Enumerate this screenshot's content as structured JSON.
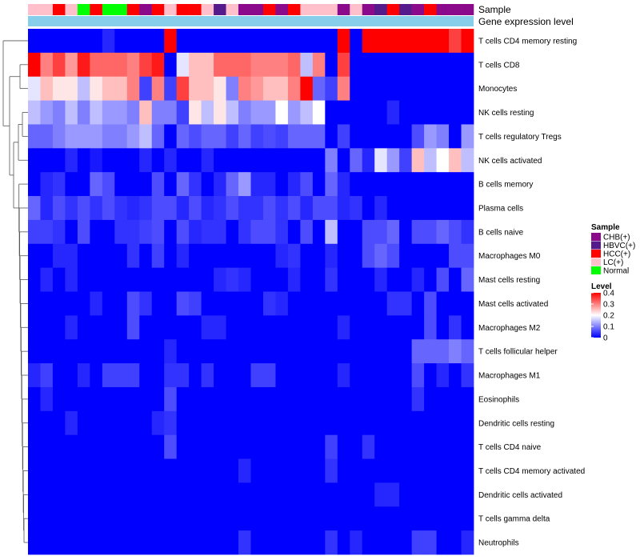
{
  "chart_data": {
    "type": "heatmap",
    "annotation_labels": [
      "Sample",
      "Gene expression level"
    ],
    "sample_groups": [
      "CHB(+)",
      "HBVC(+)",
      "HCC(+)",
      "LC(+)",
      "Normal"
    ],
    "sample_colors": {
      "CHB(+)": "#8B0A8B",
      "HBVC(+)": "#551A8B",
      "HCC(+)": "#FF0000",
      "LC(+)": "#FFC0CB",
      "Normal": "#00FF00"
    },
    "columns": [
      "LC(+)",
      "LC(+)",
      "HCC(+)",
      "LC(+)",
      "Normal",
      "HCC(+)",
      "Normal",
      "Normal",
      "HCC(+)",
      "CHB(+)",
      "HCC(+)",
      "LC(+)",
      "HCC(+)",
      "HCC(+)",
      "LC(+)",
      "HBVC(+)",
      "LC(+)",
      "CHB(+)",
      "CHB(+)",
      "HCC(+)",
      "CHB(+)",
      "HCC(+)",
      "LC(+)",
      "LC(+)",
      "LC(+)",
      "CHB(+)",
      "LC(+)",
      "CHB(+)",
      "HBVC(+)",
      "HCC(+)",
      "HBVC(+)",
      "CHB(+)",
      "HCC(+)",
      "CHB(+)",
      "CHB(+)",
      "CHB(+)"
    ],
    "gene_expression_color": "#87CEEB",
    "rows": [
      "T cells CD4 memory resting",
      "T cells CD8",
      "Monocytes",
      "NK cells resting",
      "T cells regulatory  Tregs",
      "NK cells activated",
      "B cells memory",
      "Plasma cells",
      "B cells naive",
      "Macrophages M0",
      "Mast cells resting",
      "Mast cells activated",
      "Macrophages M2",
      "T cells follicular helper",
      "Macrophages M1",
      "Eosinophils",
      "Dendritic cells resting",
      "T cells CD4 naive",
      "T cells CD4 memory activated",
      "Dendritic cells activated",
      "T cells gamma delta",
      "Neutrophils"
    ],
    "values": [
      [
        0.0,
        0.0,
        0.0,
        0.0,
        0.0,
        0.0,
        0.03,
        0.0,
        0.0,
        0.0,
        0.0,
        0.4,
        0.0,
        0.0,
        0.0,
        0.0,
        0.0,
        0.0,
        0.0,
        0.0,
        0.0,
        0.0,
        0.0,
        0.0,
        0.0,
        0.4,
        0.0,
        0.4,
        0.4,
        0.4,
        0.4,
        0.4,
        0.4,
        0.4,
        0.35,
        0.4
      ],
      [
        0.4,
        0.3,
        0.35,
        0.28,
        0.38,
        0.32,
        0.32,
        0.32,
        0.3,
        0.35,
        0.38,
        0.0,
        0.18,
        0.25,
        0.25,
        0.32,
        0.32,
        0.32,
        0.3,
        0.3,
        0.3,
        0.32,
        0.15,
        0.3,
        0.0,
        0.35,
        0.0,
        0.0,
        0.0,
        0.0,
        0.0,
        0.0,
        0.0,
        0.0,
        0.0,
        0.0
      ],
      [
        0.18,
        0.25,
        0.22,
        0.22,
        0.15,
        0.22,
        0.25,
        0.25,
        0.3,
        0.05,
        0.3,
        0.05,
        0.35,
        0.25,
        0.25,
        0.22,
        0.1,
        0.3,
        0.28,
        0.25,
        0.25,
        0.3,
        0.4,
        0.08,
        0.05,
        0.3,
        0.0,
        0.0,
        0.0,
        0.0,
        0.0,
        0.0,
        0.0,
        0.0,
        0.0,
        0.0
      ],
      [
        0.15,
        0.12,
        0.1,
        0.15,
        0.1,
        0.15,
        0.12,
        0.12,
        0.1,
        0.25,
        0.1,
        0.1,
        0.05,
        0.22,
        0.15,
        0.22,
        0.15,
        0.1,
        0.12,
        0.12,
        0.2,
        0.12,
        0.15,
        0.2,
        0.0,
        0.0,
        0.0,
        0.0,
        0.0,
        0.03,
        0.0,
        0.0,
        0.0,
        0.0,
        0.0,
        0.0
      ],
      [
        0.08,
        0.08,
        0.1,
        0.12,
        0.12,
        0.12,
        0.1,
        0.1,
        0.12,
        0.15,
        0.08,
        0.0,
        0.08,
        0.06,
        0.08,
        0.08,
        0.05,
        0.08,
        0.05,
        0.06,
        0.05,
        0.08,
        0.08,
        0.08,
        0.0,
        0.05,
        0.0,
        0.0,
        0.0,
        0.0,
        0.0,
        0.06,
        0.12,
        0.1,
        0.0,
        0.12
      ],
      [
        0.0,
        0.0,
        0.0,
        0.03,
        0.0,
        0.02,
        0.0,
        0.0,
        0.0,
        0.03,
        0.0,
        0.03,
        0.0,
        0.0,
        0.03,
        0.0,
        0.0,
        0.0,
        0.0,
        0.0,
        0.0,
        0.0,
        0.0,
        0.0,
        0.1,
        0.0,
        0.08,
        0.03,
        0.18,
        0.12,
        0.05,
        0.25,
        0.15,
        0.2,
        0.25,
        0.15
      ],
      [
        0.0,
        0.03,
        0.04,
        0.0,
        0.0,
        0.08,
        0.06,
        0.0,
        0.0,
        0.0,
        0.06,
        0.0,
        0.08,
        0.04,
        0.0,
        0.03,
        0.08,
        0.12,
        0.03,
        0.03,
        0.0,
        0.03,
        0.06,
        0.0,
        0.08,
        0.03,
        0.0,
        0.0,
        0.0,
        0.0,
        0.0,
        0.0,
        0.0,
        0.0,
        0.0,
        0.0
      ],
      [
        0.08,
        0.03,
        0.06,
        0.04,
        0.06,
        0.04,
        0.06,
        0.04,
        0.03,
        0.04,
        0.06,
        0.06,
        0.03,
        0.06,
        0.03,
        0.04,
        0.06,
        0.04,
        0.04,
        0.06,
        0.04,
        0.06,
        0.03,
        0.06,
        0.06,
        0.03,
        0.04,
        0.0,
        0.03,
        0.0,
        0.0,
        0.0,
        0.0,
        0.0,
        0.0,
        0.0
      ],
      [
        0.05,
        0.05,
        0.04,
        0.0,
        0.06,
        0.0,
        0.0,
        0.04,
        0.04,
        0.05,
        0.06,
        0.0,
        0.06,
        0.03,
        0.04,
        0.04,
        0.0,
        0.04,
        0.06,
        0.06,
        0.04,
        0.0,
        0.06,
        0.0,
        0.15,
        0.0,
        0.0,
        0.06,
        0.06,
        0.08,
        0.0,
        0.06,
        0.06,
        0.08,
        0.06,
        0.04
      ],
      [
        0.0,
        0.0,
        0.03,
        0.03,
        0.0,
        0.0,
        0.0,
        0.0,
        0.04,
        0.0,
        0.05,
        0.0,
        0.03,
        0.0,
        0.0,
        0.0,
        0.0,
        0.0,
        0.0,
        0.0,
        0.03,
        0.04,
        0.0,
        0.0,
        0.03,
        0.0,
        0.0,
        0.06,
        0.08,
        0.06,
        0.0,
        0.0,
        0.0,
        0.0,
        0.06,
        0.06
      ],
      [
        0.0,
        0.03,
        0.0,
        0.03,
        0.0,
        0.0,
        0.0,
        0.0,
        0.0,
        0.0,
        0.0,
        0.0,
        0.0,
        0.0,
        0.0,
        0.03,
        0.04,
        0.03,
        0.0,
        0.0,
        0.0,
        0.03,
        0.0,
        0.0,
        0.04,
        0.0,
        0.0,
        0.0,
        0.03,
        0.0,
        0.0,
        0.03,
        0.0,
        0.06,
        0.0,
        0.08
      ],
      [
        0.0,
        0.0,
        0.0,
        0.0,
        0.0,
        0.03,
        0.0,
        0.0,
        0.06,
        0.04,
        0.0,
        0.0,
        0.06,
        0.05,
        0.0,
        0.0,
        0.0,
        0.0,
        0.0,
        0.04,
        0.03,
        0.0,
        0.0,
        0.0,
        0.0,
        0.0,
        0.0,
        0.0,
        0.0,
        0.04,
        0.04,
        0.0,
        0.06,
        0.0,
        0.0,
        0.0
      ],
      [
        0.0,
        0.0,
        0.0,
        0.03,
        0.0,
        0.0,
        0.0,
        0.0,
        0.06,
        0.0,
        0.0,
        0.0,
        0.0,
        0.0,
        0.03,
        0.03,
        0.0,
        0.0,
        0.0,
        0.0,
        0.0,
        0.0,
        0.0,
        0.0,
        0.0,
        0.03,
        0.0,
        0.0,
        0.0,
        0.0,
        0.0,
        0.0,
        0.06,
        0.0,
        0.04,
        0.0
      ],
      [
        0.0,
        0.0,
        0.0,
        0.0,
        0.0,
        0.0,
        0.0,
        0.0,
        0.0,
        0.0,
        0.0,
        0.03,
        0.0,
        0.0,
        0.0,
        0.0,
        0.0,
        0.0,
        0.0,
        0.0,
        0.0,
        0.0,
        0.0,
        0.0,
        0.0,
        0.0,
        0.0,
        0.0,
        0.0,
        0.0,
        0.0,
        0.08,
        0.08,
        0.08,
        0.1,
        0.08
      ],
      [
        0.03,
        0.05,
        0.0,
        0.0,
        0.03,
        0.0,
        0.05,
        0.05,
        0.05,
        0.0,
        0.0,
        0.04,
        0.04,
        0.0,
        0.04,
        0.0,
        0.0,
        0.0,
        0.05,
        0.05,
        0.0,
        0.0,
        0.0,
        0.0,
        0.0,
        0.03,
        0.0,
        0.0,
        0.0,
        0.0,
        0.0,
        0.06,
        0.0,
        0.03,
        0.0,
        0.04
      ],
      [
        0.0,
        0.03,
        0.0,
        0.0,
        0.0,
        0.0,
        0.0,
        0.0,
        0.0,
        0.0,
        0.0,
        0.06,
        0.0,
        0.0,
        0.0,
        0.0,
        0.0,
        0.0,
        0.0,
        0.0,
        0.0,
        0.0,
        0.0,
        0.0,
        0.0,
        0.0,
        0.0,
        0.0,
        0.0,
        0.0,
        0.0,
        0.04,
        0.0,
        0.0,
        0.0,
        0.0
      ],
      [
        0.0,
        0.0,
        0.0,
        0.03,
        0.0,
        0.0,
        0.0,
        0.0,
        0.0,
        0.0,
        0.03,
        0.04,
        0.0,
        0.0,
        0.0,
        0.0,
        0.0,
        0.0,
        0.0,
        0.0,
        0.0,
        0.0,
        0.0,
        0.0,
        0.0,
        0.0,
        0.0,
        0.0,
        0.0,
        0.0,
        0.0,
        0.0,
        0.0,
        0.0,
        0.0,
        0.0
      ],
      [
        0.0,
        0.0,
        0.0,
        0.0,
        0.0,
        0.0,
        0.0,
        0.0,
        0.0,
        0.0,
        0.0,
        0.06,
        0.0,
        0.0,
        0.0,
        0.0,
        0.0,
        0.0,
        0.0,
        0.0,
        0.0,
        0.0,
        0.0,
        0.0,
        0.05,
        0.0,
        0.0,
        0.04,
        0.0,
        0.0,
        0.0,
        0.0,
        0.0,
        0.0,
        0.0,
        0.0
      ],
      [
        0.0,
        0.0,
        0.0,
        0.0,
        0.0,
        0.0,
        0.0,
        0.0,
        0.0,
        0.0,
        0.0,
        0.0,
        0.0,
        0.0,
        0.0,
        0.0,
        0.0,
        0.03,
        0.0,
        0.0,
        0.0,
        0.0,
        0.0,
        0.0,
        0.04,
        0.0,
        0.0,
        0.0,
        0.0,
        0.0,
        0.0,
        0.0,
        0.0,
        0.0,
        0.0,
        0.0
      ],
      [
        0.0,
        0.0,
        0.0,
        0.0,
        0.0,
        0.0,
        0.0,
        0.0,
        0.0,
        0.0,
        0.0,
        0.0,
        0.0,
        0.0,
        0.0,
        0.0,
        0.0,
        0.0,
        0.0,
        0.0,
        0.0,
        0.0,
        0.0,
        0.0,
        0.0,
        0.0,
        0.0,
        0.0,
        0.03,
        0.03,
        0.0,
        0.0,
        0.0,
        0.0,
        0.0,
        0.0
      ],
      [
        0.0,
        0.0,
        0.0,
        0.0,
        0.0,
        0.0,
        0.0,
        0.0,
        0.0,
        0.0,
        0.0,
        0.0,
        0.0,
        0.0,
        0.0,
        0.0,
        0.0,
        0.0,
        0.0,
        0.0,
        0.0,
        0.0,
        0.0,
        0.0,
        0.0,
        0.0,
        0.0,
        0.0,
        0.0,
        0.0,
        0.0,
        0.0,
        0.0,
        0.0,
        0.0,
        0.0
      ],
      [
        0.0,
        0.0,
        0.0,
        0.0,
        0.0,
        0.0,
        0.0,
        0.0,
        0.0,
        0.0,
        0.0,
        0.0,
        0.0,
        0.0,
        0.0,
        0.0,
        0.0,
        0.04,
        0.0,
        0.0,
        0.0,
        0.0,
        0.0,
        0.0,
        0.04,
        0.0,
        0.03,
        0.0,
        0.0,
        0.0,
        0.0,
        0.05,
        0.05,
        0.0,
        0.0,
        0.03
      ]
    ],
    "legend": {
      "sample_title": "Sample",
      "level_title": "Level",
      "level_ticks": [
        "0.4",
        "0.3",
        "0.2",
        "0.1",
        "0"
      ],
      "level_range": [
        0,
        0.4
      ],
      "colors": {
        "low": "#0000FF",
        "mid": "#FFFFFF",
        "high": "#FF0000"
      }
    }
  }
}
